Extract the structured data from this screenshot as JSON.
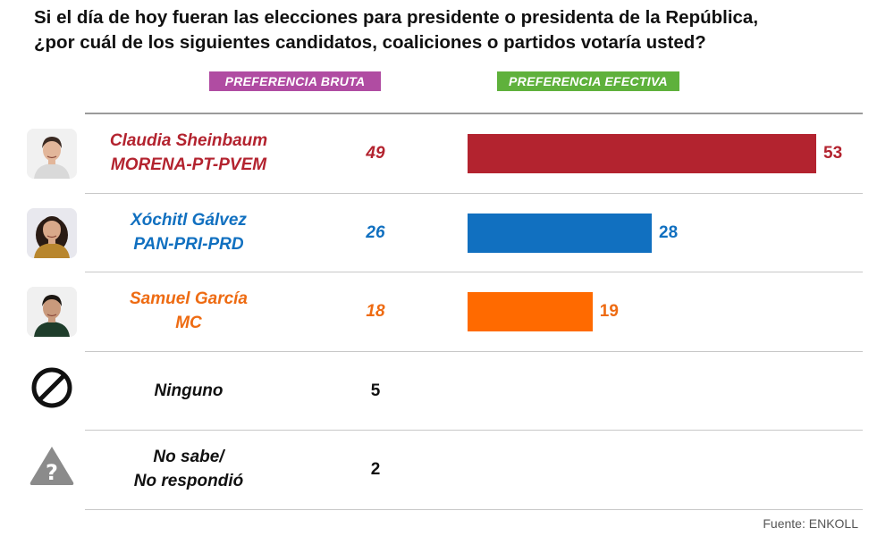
{
  "title_line1": "Si el día de hoy fueran las elecciones para presidente o presidenta de la República,",
  "title_line2": "¿por cuál de los siguientes candidatos, coaliciones o partidos votaría usted?",
  "source": "Fuente: ENKOLL",
  "chart_data": {
    "type": "bar",
    "title": "Si el día de hoy fueran las elecciones para presidente o presidenta de la República, ¿por cuál de los siguientes candidatos, coaliciones o partidos votaría usted?",
    "headers": {
      "bruta": "PREFERENCIA BRUTA",
      "efectiva": "PREFERENCIA EFECTIVA"
    },
    "xmax": 53,
    "rows": [
      {
        "line1": "Claudia Sheinbaum",
        "line2": "MORENA-PT-PVEM",
        "bruta": 49,
        "efectiva": 53,
        "color": "#b3232f",
        "label_color": "#b3232f",
        "icon": "photo-claudia-sheinbaum"
      },
      {
        "line1": "Xóchitl Gálvez",
        "line2": "PAN-PRI-PRD",
        "bruta": 26,
        "efectiva": 28,
        "color": "#1170c0",
        "label_color": "#1170c0",
        "icon": "photo-xochitl-galvez"
      },
      {
        "line1": "Samuel García",
        "line2": "MC",
        "bruta": 18,
        "efectiva": 19,
        "color": "#ff6a00",
        "label_color": "#ee6b12",
        "icon": "photo-samuel-garcia"
      },
      {
        "line1": "Ninguno",
        "line2": "",
        "bruta": 5,
        "efectiva": null,
        "color": null,
        "label_color": "#111111",
        "icon": "prohibited-icon"
      },
      {
        "line1": "No sabe/",
        "line2": "No respondió",
        "bruta": 2,
        "efectiva": null,
        "color": null,
        "label_color": "#111111",
        "icon": "question-warning-icon"
      }
    ]
  }
}
